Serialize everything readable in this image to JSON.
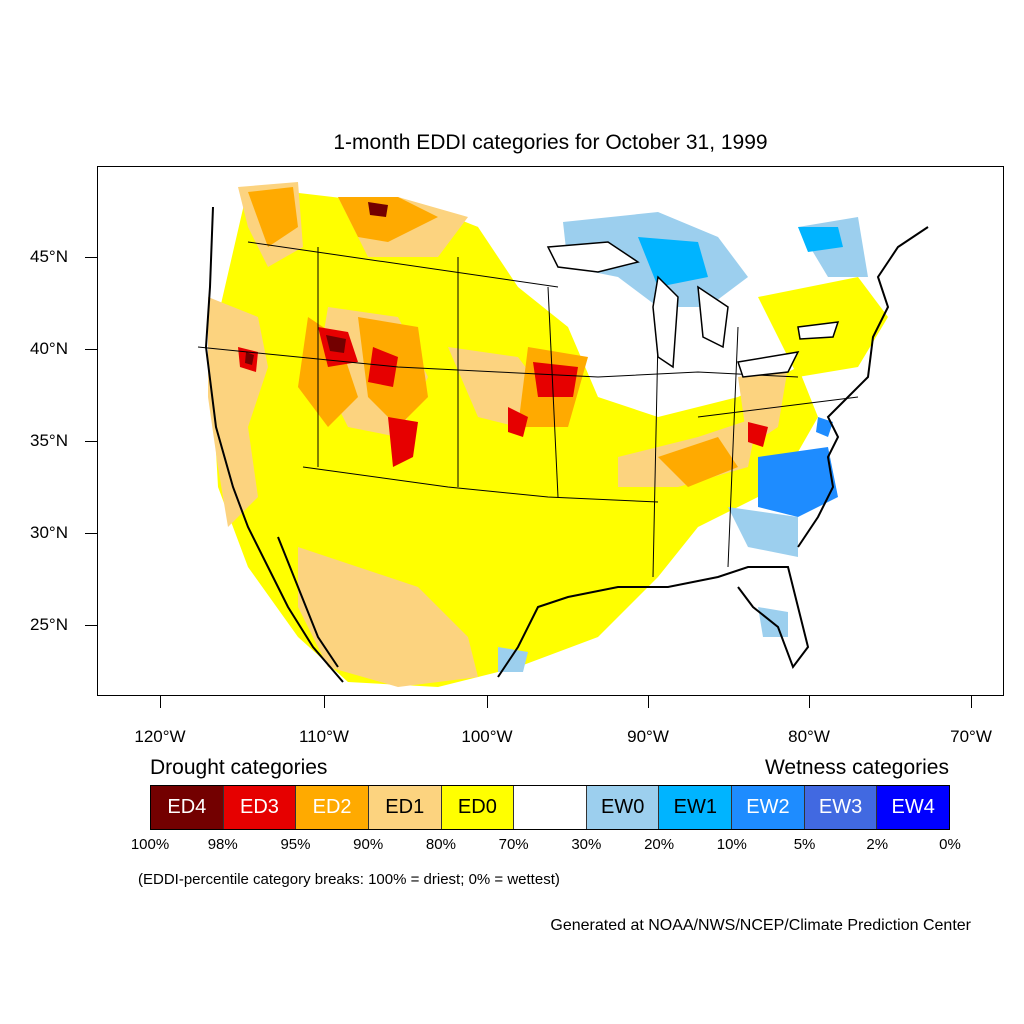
{
  "title": "1-month EDDI categories for October 31, 1999",
  "map": {
    "latitude_labels": [
      "45°N",
      "40°N",
      "35°N",
      "30°N",
      "25°N"
    ],
    "longitude_labels": [
      "120°W",
      "110°W",
      "100°W",
      "90°W",
      "80°W",
      "70°W"
    ]
  },
  "legend": {
    "drought_heading": "Drought categories",
    "wetness_heading": "Wetness categories",
    "categories": [
      {
        "label": "ED4",
        "color": "#730000",
        "text_color": "#ffffff"
      },
      {
        "label": "ED3",
        "color": "#e60000",
        "text_color": "#ffffff"
      },
      {
        "label": "ED2",
        "color": "#ffaa00",
        "text_color": "#ffffff"
      },
      {
        "label": "ED1",
        "color": "#fcd37f",
        "text_color": "#000000"
      },
      {
        "label": "ED0",
        "color": "#ffff00",
        "text_color": "#000000"
      },
      {
        "label": "",
        "color": "#ffffff",
        "text_color": "#000000"
      },
      {
        "label": "EW0",
        "color": "#9ccfee",
        "text_color": "#000000"
      },
      {
        "label": "EW1",
        "color": "#00b4ff",
        "text_color": "#000000"
      },
      {
        "label": "EW2",
        "color": "#1e8cff",
        "text_color": "#ffffff"
      },
      {
        "label": "EW3",
        "color": "#4169e1",
        "text_color": "#ffffff"
      },
      {
        "label": "EW4",
        "color": "#0000ff",
        "text_color": "#ffffff"
      }
    ],
    "breaks": [
      "100%",
      "98%",
      "95%",
      "90%",
      "80%",
      "70%",
      "30%",
      "20%",
      "10%",
      "5%",
      "2%",
      "0%"
    ]
  },
  "note": "(EDDI-percentile category breaks: 100% = driest; 0% = wettest)",
  "credit": "Generated at NOAA/NWS/NCEP/Climate Prediction Center"
}
